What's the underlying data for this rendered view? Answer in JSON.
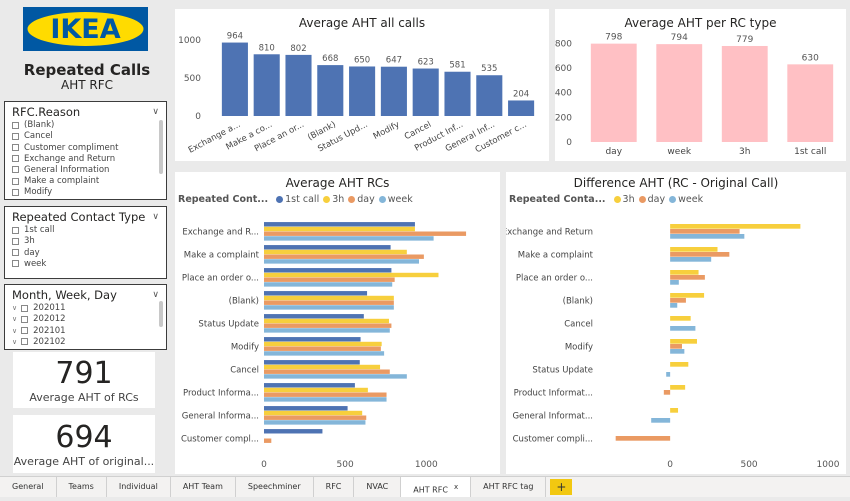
{
  "brand": {
    "logo_text": "IKEA",
    "logo_blue": "#0058a3",
    "logo_yellow": "#ffdb00"
  },
  "header": {
    "title": "Repeated Calls",
    "subtitle": "AHT RFC"
  },
  "slicers": {
    "reason": {
      "title": "RFC.Reason",
      "items": [
        "(Blank)",
        "Cancel",
        "Customer compliment",
        "Exchange and Return",
        "General Information",
        "Make a complaint",
        "Modify"
      ]
    },
    "contact": {
      "title": "Repeated Contact Type",
      "items": [
        "1st call",
        "3h",
        "day",
        "week"
      ]
    },
    "date": {
      "title": "Month, Week, Day",
      "items": [
        "202011",
        "202012",
        "202101",
        "202102"
      ]
    }
  },
  "kpis": {
    "rcs": {
      "value": "791",
      "label": "Average AHT of RCs"
    },
    "original": {
      "value": "694",
      "label": "Average AHT of original..."
    }
  },
  "tabs": [
    "General",
    "Teams",
    "Individual",
    "AHT Team",
    "Speechminer",
    "RFC",
    "NVAC",
    "AHT RFC",
    "AHT RFC tag"
  ],
  "active_tab": "AHT RFC",
  "tab_close": "x",
  "tab_add": "+",
  "colors": {
    "blue": "#4e73b3",
    "pink": "#ffc0c4",
    "yellow": "#f7cf3d",
    "orange": "#ea9a63",
    "light_blue": "#84b6d9"
  },
  "chart_data": [
    {
      "type": "bar",
      "title": "Average AHT all calls",
      "categories": [
        "Exchange a...",
        "Make a co...",
        "Place an or...",
        "(Blank)",
        "Status Upd...",
        "Modify",
        "Cancel",
        "Product Inf...",
        "General Inf...",
        "Customer c..."
      ],
      "values": [
        964,
        810,
        802,
        668,
        650,
        647,
        623,
        581,
        535,
        204
      ],
      "yticks": [
        0,
        500,
        1000
      ],
      "ylim": [
        0,
        1050
      ]
    },
    {
      "type": "bar",
      "title": "Average AHT per RC type",
      "categories": [
        "day",
        "week",
        "3h",
        "1st call"
      ],
      "values": [
        798,
        794,
        779,
        630
      ],
      "yticks": [
        0,
        200,
        400,
        600,
        800
      ],
      "ylim": [
        0,
        860
      ]
    },
    {
      "type": "bar",
      "orientation": "horizontal",
      "title": "Average AHT RCs",
      "legend_title": "Repeated Cont...",
      "categories": [
        "Exchange and R...",
        "Make a complaint",
        "Place an order o...",
        "(Blank)",
        "Status Update",
        "Modify",
        "Cancel",
        "Product Informa...",
        "General Informa...",
        "Customer compl..."
      ],
      "series": [
        {
          "name": "1st call",
          "color": "#4e73b3",
          "values": [
            930,
            780,
            785,
            635,
            615,
            595,
            590,
            560,
            515,
            360
          ]
        },
        {
          "name": "3h",
          "color": "#f7cf3d",
          "values": [
            930,
            880,
            1075,
            800,
            770,
            725,
            715,
            640,
            605,
            0
          ]
        },
        {
          "name": "day",
          "color": "#ea9a63",
          "values": [
            1245,
            985,
            805,
            800,
            785,
            720,
            775,
            755,
            630,
            45
          ]
        },
        {
          "name": "week",
          "color": "#84b6d9",
          "values": [
            1045,
            955,
            790,
            800,
            775,
            740,
            880,
            755,
            625,
            0
          ]
        }
      ],
      "xticks": [
        0,
        500,
        1000
      ],
      "xlim": [
        0,
        1300
      ]
    },
    {
      "type": "bar",
      "orientation": "horizontal",
      "title": "Difference AHT (RC - Original Call)",
      "legend_title": "Repeated Conta...",
      "categories": [
        "Exchange and Return",
        "Make a complaint",
        "Place an order o...",
        "(Blank)",
        "Cancel",
        "Modify",
        "Status Update",
        "Product Informat...",
        "General Informat...",
        "Customer compli..."
      ],
      "series": [
        {
          "name": "3h",
          "color": "#f7cf3d",
          "values": [
            825,
            300,
            180,
            215,
            130,
            170,
            115,
            95,
            50,
            0
          ]
        },
        {
          "name": "day",
          "color": "#ea9a63",
          "values": [
            440,
            375,
            220,
            100,
            0,
            75,
            0,
            -40,
            0,
            -345
          ]
        },
        {
          "name": "week",
          "color": "#84b6d9",
          "values": [
            470,
            260,
            55,
            45,
            160,
            90,
            -25,
            0,
            -120,
            0
          ]
        }
      ],
      "xticks": [
        0,
        500,
        1000
      ],
      "xlim": [
        -400,
        1000
      ]
    }
  ]
}
